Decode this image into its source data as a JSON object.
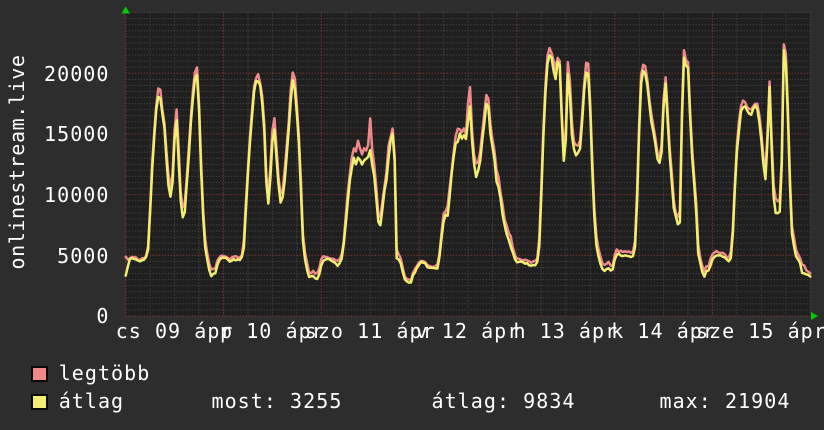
{
  "side_label": "onlinestream.live",
  "colors": {
    "background": "#2d2d2d",
    "plot_background": "#1f1f1f",
    "grid_minor": "#4f4f4f",
    "grid_major": "#a83c3c",
    "text": "#ffffff",
    "arrow": "#00cc00",
    "series_max": "#f08a8a",
    "series_avg": "#f1ee71"
  },
  "legend": [
    {
      "label": "legtöbb",
      "color": "#f08a8a"
    },
    {
      "label": "átlag",
      "color": "#f1ee71"
    }
  ],
  "stats": [
    {
      "text": "most: 3255"
    },
    {
      "text": "átlag: 9834"
    },
    {
      "text": "max: 21904"
    }
  ],
  "chart_data": {
    "type": "line",
    "title": "",
    "xlabel": "",
    "ylabel": "onlinestream.live",
    "x_range_days": 7,
    "points_per_day": 48,
    "x_tick_labels": [
      "cs 09 ápr",
      "p 10 ápr",
      "szo 11 ápr",
      "v 12 ápr",
      "h 13 ápr",
      "k 14 ápr",
      "sze 15 ápr"
    ],
    "y_tick_labels": [
      "0",
      "5000",
      "10000",
      "15000",
      "20000"
    ],
    "y_ticks": [
      0,
      5000,
      10000,
      15000,
      20000
    ],
    "ylim": [
      0,
      25000
    ],
    "grid": true,
    "legend_position": "bottom-left",
    "series": [
      {
        "name": "legtöbb",
        "color": "#f08a8a",
        "values": [
          4890,
          4648,
          4753,
          4863,
          4849,
          4834,
          4660,
          4601,
          4765,
          4758,
          4923,
          5769,
          8929,
          12624,
          15112,
          17342,
          18743,
          18646,
          16973,
          15905,
          13622,
          11590,
          10510,
          11737,
          15361,
          17016,
          13815,
          10145,
          8960,
          9322,
          11478,
          13959,
          16387,
          18574,
          20077,
          20481,
          17407,
          12721,
          8751,
          6351,
          5184,
          4322,
          3830,
          3874,
          3936,
          4565,
          4823,
          4976,
          4948,
          4890,
          4818,
          4648,
          4823,
          4897,
          4927,
          4806,
          4836,
          4970,
          6277,
          9378,
          12165,
          14768,
          16946,
          18866,
          19592,
          19919,
          19178,
          18122,
          15853,
          11657,
          9963,
          12307,
          15286,
          16293,
          13915,
          11401,
          10097,
          10285,
          11994,
          13953,
          15979,
          18652,
          20062,
          19580,
          17418,
          14773,
          11197,
          6745,
          5218,
          4410,
          3603,
          3512,
          3719,
          3492,
          3537,
          3913,
          4690,
          4923,
          4873,
          4834,
          4767,
          4718,
          4713,
          4589,
          4553,
          4695,
          5073,
          6091,
          8250,
          10134,
          11687,
          13075,
          13806,
          13561,
          14441,
          13816,
          13313,
          13819,
          13628,
          14098,
          16280,
          13698,
          12439,
          10572,
          8353,
          8149,
          9427,
          10658,
          11900,
          14024,
          14736,
          15442,
          13185,
          5451,
          5099,
          4739,
          3952,
          3259,
          3043,
          3009,
          2912,
          3549,
          3879,
          4134,
          4415,
          4533,
          4520,
          4428,
          4212,
          4121,
          4073,
          4036,
          4117,
          4248,
          5175,
          6840,
          8428,
          8630,
          9082,
          10577,
          11938,
          13558,
          14866,
          15421,
          15381,
          15149,
          15452,
          14970,
          17550,
          18860,
          15220,
          13245,
          12586,
          12674,
          13561,
          15103,
          16716,
          18198,
          17879,
          15787,
          14558,
          13582,
          12008,
          11467,
          10116,
          9114,
          7927,
          7452,
          6838,
          6555,
          5645,
          5051,
          4737,
          4715,
          4645,
          4581,
          4640,
          4577,
          4518,
          4384,
          4504,
          4561,
          4708,
          6459,
          10738,
          15278,
          18993,
          21428,
          22074,
          21679,
          21048,
          20323,
          21265,
          21006,
          16775,
          13354,
          15422,
          20920,
          19402,
          15973,
          14372,
          14078,
          14034,
          14461,
          16532,
          19093,
          20858,
          20792,
          17476,
          12836,
          8865,
          6640,
          5556,
          4908,
          4316,
          4212,
          4300,
          4464,
          4157,
          4126,
          5031,
          5486,
          5276,
          5381,
          5281,
          5325,
          5276,
          5321,
          5205,
          5314,
          6204,
          10378,
          15798,
          19919,
          20696,
          20578,
          19488,
          17851,
          16622,
          15649,
          14625,
          13459,
          13098,
          14085,
          17854,
          19661,
          16793,
          13777,
          11855,
          9520,
          8456,
          8184,
          8654,
          16797,
          21890,
          21082,
          20911,
          16883,
          13832,
          11487,
          9408,
          5872,
          4799,
          4123,
          3693,
          4102,
          4073,
          4692,
          5090,
          5236,
          5348,
          5219,
          5193,
          5209,
          5098,
          4862,
          4833,
          5271,
          7246,
          10945,
          14156,
          16054,
          17305,
          17748,
          17611,
          17211,
          17059,
          17019,
          17277,
          17489,
          17483,
          16525,
          15051,
          13107,
          11964,
          14957,
          19324,
          14728,
          10795,
          9693,
          9447,
          9628,
          13051,
          22380,
          21623,
          17168,
          11466,
          7397,
          6449,
          5449,
          5077,
          4763,
          4224,
          4170,
          3771,
          3647,
          3517
        ]
      },
      {
        "name": "átlag",
        "color": "#f1ee71",
        "values": [
          3324,
          4043,
          4666,
          4770,
          4713,
          4660,
          4564,
          4503,
          4584,
          4645,
          4863,
          5476,
          8596,
          12053,
          14742,
          17001,
          18044,
          17949,
          16636,
          15528,
          12928,
          10720,
          9835,
          11046,
          14593,
          16130,
          12692,
          9497,
          8136,
          8564,
          10947,
          13172,
          15980,
          17941,
          19545,
          19847,
          16952,
          12067,
          8230,
          5667,
          4667,
          3792,
          3283,
          3477,
          3525,
          4207,
          4615,
          4770,
          4805,
          4797,
          4683,
          4487,
          4538,
          4696,
          4581,
          4661,
          4608,
          4861,
          5631,
          8776,
          11737,
          14350,
          16443,
          18482,
          19362,
          19314,
          19022,
          17554,
          15329,
          11071,
          9256,
          11332,
          14377,
          15372,
          13037,
          10857,
          9350,
          9767,
          11092,
          13172,
          15340,
          17703,
          19437,
          18700,
          16663,
          14271,
          10268,
          6185,
          4698,
          3810,
          3221,
          3269,
          3305,
          3099,
          3054,
          3431,
          4189,
          4543,
          4645,
          4700,
          4672,
          4541,
          4459,
          4345,
          4128,
          4355,
          4711,
          5933,
          7578,
          9427,
          11163,
          12212,
          13036,
          12497,
          13044,
          12859,
          12486,
          12804,
          12954,
          13106,
          13663,
          12435,
          11506,
          9668,
          7756,
          7477,
          8833,
          10328,
          11228,
          12998,
          14397,
          15021,
          12771,
          4760,
          4652,
          4337,
          3612,
          3013,
          2851,
          2746,
          2761,
          3372,
          3598,
          4001,
          4213,
          4468,
          4390,
          4354,
          4032,
          3973,
          3979,
          3949,
          3928,
          3914,
          4882,
          6420,
          7768,
          8338,
          8254,
          9873,
          11757,
          13180,
          14244,
          14354,
          15046,
          14615,
          14887,
          14581,
          16049,
          17274,
          14437,
          12504,
          11453,
          11983,
          12792,
          14457,
          15901,
          17482,
          17205,
          14990,
          13957,
          12875,
          11088,
          10601,
          9664,
          8326,
          7461,
          6741,
          6274,
          5700,
          5234,
          4711,
          4424,
          4456,
          4489,
          4426,
          4306,
          4364,
          4178,
          4147,
          4201,
          4185,
          4458,
          5805,
          10058,
          14851,
          18338,
          20772,
          21481,
          21295,
          20217,
          19519,
          20942,
          20678,
          16326,
          12786,
          14524,
          19952,
          18280,
          14919,
          13746,
          13231,
          13451,
          13787,
          15942,
          18567,
          20054,
          19917,
          16930,
          12101,
          8195,
          5837,
          4943,
          4300,
          3868,
          3713,
          3866,
          3936,
          3748,
          3837,
          4646,
          5036,
          5142,
          4971,
          4944,
          4993,
          4961,
          4915,
          4864,
          4947,
          5712,
          9522,
          15222,
          19205,
          20190,
          19939,
          19043,
          17499,
          15968,
          15165,
          14127,
          12944,
          12619,
          13496,
          17246,
          19148,
          16079,
          13229,
          11074,
          8883,
          8218,
          7557,
          7715,
          16236,
          21278,
          20634,
          20440,
          16447,
          13104,
          10925,
          8559,
          5133,
          4377,
          3619,
          3242,
          3702,
          3746,
          4136,
          4662,
          4884,
          4981,
          4999,
          4996,
          4882,
          4831,
          4657,
          4506,
          4775,
          6826,
          10592,
          13601,
          15254,
          16879,
          17190,
          17275,
          16931,
          16672,
          16581,
          17075,
          17349,
          17035,
          15983,
          14397,
          12493,
          11268,
          14513,
          18862,
          13902,
          9818,
          8486,
          8465,
          8596,
          12430,
          21904,
          20779,
          16443,
          10842,
          6790,
          5757,
          4908,
          4660,
          4340,
          3545,
          3506,
          3433,
          3388,
          3255
        ]
      }
    ]
  }
}
